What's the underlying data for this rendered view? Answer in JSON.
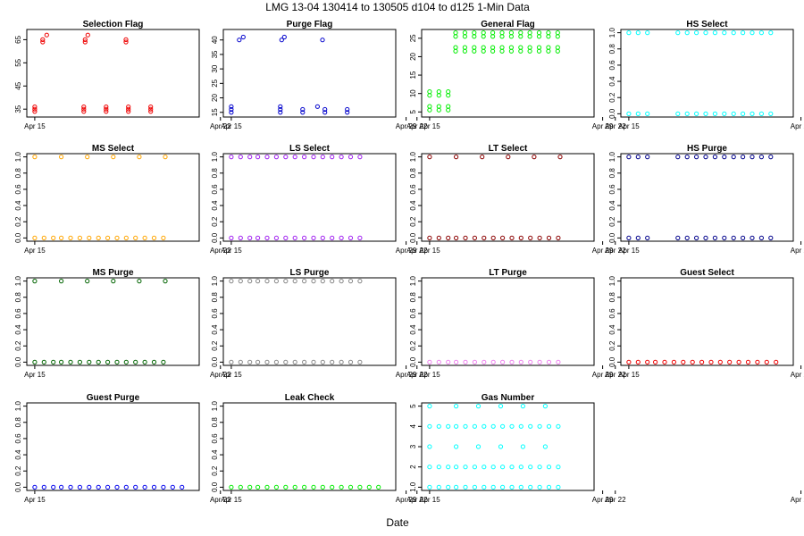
{
  "figure": {
    "title": "LMG   13-04    130414 to 130505    d104 to d125   1-Min Data",
    "xlabel": "Date",
    "x_ticks": [
      "Apr 15",
      "Apr 22",
      "Apr 29"
    ]
  },
  "chart_data": [
    {
      "type": "scatter",
      "title": "Selection Flag",
      "color": "#ee0000",
      "ylim": [
        33,
        68
      ],
      "yticks": [
        35,
        45,
        55,
        65
      ],
      "levels": [
        {
          "v": 34,
          "segs": [
            [
              0.0,
              0.72
            ],
            [
              1.85,
              4.6
            ]
          ],
          "step": 0.12
        },
        {
          "v": 35,
          "segs": [
            [
              0.0,
              0.72
            ],
            [
              1.85,
              4.6
            ]
          ],
          "step": 0.12
        },
        {
          "v": 36,
          "segs": [
            [
              0.0,
              0.72
            ],
            [
              1.85,
              4.6
            ]
          ],
          "step": 0.12
        },
        {
          "v": 64,
          "segs": [
            [
              0.3,
              0.7
            ],
            [
              1.9,
              4.6
            ]
          ],
          "step": 0.22
        },
        {
          "v": 65,
          "segs": [
            [
              0.3,
              0.7
            ],
            [
              1.9,
              4.6
            ]
          ],
          "step": 0.22
        },
        {
          "v": 67,
          "segs": [
            [
              0.45,
              0.55
            ],
            [
              2.0,
              4.6
            ]
          ],
          "step": 0.5
        }
      ]
    },
    {
      "type": "scatter",
      "title": "Purge Flag",
      "color": "#0000cc",
      "ylim": [
        14.5,
        42.5
      ],
      "yticks": [
        15,
        20,
        25,
        30,
        35,
        40
      ],
      "levels": [
        {
          "v": 15,
          "segs": [
            [
              0.0,
              0.72
            ],
            [
              1.85,
              4.6
            ]
          ],
          "step": 0.12
        },
        {
          "v": 16,
          "segs": [
            [
              0.0,
              0.72
            ],
            [
              1.85,
              4.6
            ]
          ],
          "step": 0.12
        },
        {
          "v": 17,
          "segs": [
            [
              0.0,
              0.72
            ],
            [
              1.85,
              4.6
            ]
          ],
          "step": 0.2
        },
        {
          "v": 40,
          "segs": [
            [
              0.3,
              0.7
            ],
            [
              1.9,
              4.6
            ]
          ],
          "step": 0.22
        },
        {
          "v": 41,
          "segs": [
            [
              0.45,
              0.55
            ],
            [
              2.0,
              4.6
            ]
          ],
          "step": 0.5
        }
      ]
    },
    {
      "type": "scatter",
      "title": "General Flag",
      "color": "#00ee00",
      "ylim": [
        4.5,
        26.5
      ],
      "yticks": [
        5,
        10,
        15,
        20,
        25
      ],
      "levels": [
        {
          "v": 5.5,
          "segs": [
            [
              0.0,
              0.72
            ]
          ],
          "step": 0.05
        },
        {
          "v": 6.5,
          "segs": [
            [
              0.0,
              0.72
            ]
          ],
          "step": 0.05
        },
        {
          "v": 9.5,
          "segs": [
            [
              0.0,
              0.72
            ]
          ],
          "step": 0.05
        },
        {
          "v": 10.5,
          "segs": [
            [
              0.0,
              0.72
            ]
          ],
          "step": 0.05
        },
        {
          "v": 21.5,
          "segs": [
            [
              0.98,
              5.0
            ]
          ],
          "step": 0.05
        },
        {
          "v": 22.5,
          "segs": [
            [
              0.98,
              5.0
            ]
          ],
          "step": 0.05
        },
        {
          "v": 25.5,
          "segs": [
            [
              0.98,
              5.0
            ]
          ],
          "step": 0.05
        },
        {
          "v": 26.5,
          "segs": [
            [
              0.98,
              5.0
            ]
          ],
          "step": 0.05
        }
      ]
    },
    {
      "type": "scatter",
      "title": "HS Select",
      "color": "#00ffff",
      "ylim": [
        0,
        1
      ],
      "yticks": [
        0,
        0.2,
        0.4,
        0.6,
        0.8,
        1
      ],
      "levels": [
        {
          "v": 0,
          "segs": [
            [
              0.0,
              0.72
            ],
            [
              1.85,
              5.6
            ]
          ],
          "step": 0.05
        },
        {
          "v": 1,
          "segs": [
            [
              0.0,
              0.72
            ],
            [
              1.85,
              5.6
            ]
          ],
          "step": 0.05
        }
      ]
    },
    {
      "type": "scatter",
      "title": "MS Select",
      "color": "#ffa500",
      "ylim": [
        0,
        1
      ],
      "yticks": [
        0,
        0.2,
        0.4,
        0.6,
        0.8,
        1
      ],
      "levels": [
        {
          "v": 0,
          "segs": [
            [
              0.0,
              0.72
            ],
            [
              1.0,
              5.0
            ]
          ],
          "step": 0.05
        },
        {
          "v": 1,
          "segs": [
            [
              0.0,
              0.72
            ],
            [
              1.0,
              5.0
            ]
          ],
          "step": 0.14
        }
      ]
    },
    {
      "type": "scatter",
      "title": "LS Select",
      "color": "#a020f0",
      "ylim": [
        0,
        1
      ],
      "yticks": [
        0,
        0.2,
        0.4,
        0.6,
        0.8,
        1
      ],
      "levels": [
        {
          "v": 0,
          "segs": [
            [
              0.0,
              0.72
            ],
            [
              1.0,
              5.0
            ]
          ],
          "step": 0.05
        },
        {
          "v": 1,
          "segs": [
            [
              0.0,
              0.72
            ],
            [
              1.0,
              5.0
            ]
          ],
          "step": 0.05
        }
      ]
    },
    {
      "type": "scatter",
      "title": "LT Select",
      "color": "#8b0000",
      "ylim": [
        0,
        1
      ],
      "yticks": [
        0,
        0.2,
        0.4,
        0.6,
        0.8,
        1
      ],
      "levels": [
        {
          "v": 0,
          "segs": [
            [
              0.0,
              0.72
            ],
            [
              1.0,
              5.0
            ]
          ],
          "step": 0.05
        },
        {
          "v": 1,
          "segs": [
            [
              0.0,
              0.72
            ],
            [
              1.0,
              5.0
            ]
          ],
          "step": 0.14
        }
      ]
    },
    {
      "type": "scatter",
      "title": "HS Purge",
      "color": "#00008b",
      "ylim": [
        0,
        1
      ],
      "yticks": [
        0,
        0.2,
        0.4,
        0.6,
        0.8,
        1
      ],
      "levels": [
        {
          "v": 0,
          "segs": [
            [
              0.0,
              0.72
            ],
            [
              1.85,
              5.6
            ]
          ],
          "step": 0.05
        },
        {
          "v": 1,
          "segs": [
            [
              0.0,
              0.72
            ],
            [
              1.85,
              5.6
            ]
          ],
          "step": 0.05
        }
      ]
    },
    {
      "type": "scatter",
      "title": "MS Purge",
      "color": "#006400",
      "ylim": [
        0,
        1
      ],
      "yticks": [
        0,
        0.2,
        0.4,
        0.6,
        0.8,
        1
      ],
      "levels": [
        {
          "v": 0,
          "segs": [
            [
              0.0,
              0.72
            ],
            [
              1.0,
              5.0
            ]
          ],
          "step": 0.05
        },
        {
          "v": 1,
          "segs": [
            [
              0.0,
              0.72
            ],
            [
              1.0,
              5.0
            ]
          ],
          "step": 0.14
        }
      ]
    },
    {
      "type": "scatter",
      "title": "LS Purge",
      "color": "#888888",
      "ylim": [
        0,
        1
      ],
      "yticks": [
        0,
        0.2,
        0.4,
        0.6,
        0.8,
        1
      ],
      "levels": [
        {
          "v": 0,
          "segs": [
            [
              0.0,
              0.72
            ],
            [
              1.0,
              5.0
            ]
          ],
          "step": 0.05
        },
        {
          "v": 1,
          "segs": [
            [
              0.0,
              0.72
            ],
            [
              1.0,
              5.0
            ]
          ],
          "step": 0.05
        }
      ]
    },
    {
      "type": "scatter",
      "title": "LT Purge",
      "color": "#ee82ee",
      "ylim": [
        0,
        1
      ],
      "yticks": [
        0,
        0.2,
        0.4,
        0.6,
        0.8,
        1
      ],
      "levels": [
        {
          "v": 0,
          "segs": [
            [
              0.0,
              0.72
            ],
            [
              1.0,
              5.0
            ]
          ],
          "step": 0.05
        }
      ]
    },
    {
      "type": "scatter",
      "title": "Guest Select",
      "color": "#ee0000",
      "ylim": [
        0,
        1
      ],
      "yticks": [
        0,
        0.2,
        0.4,
        0.6,
        0.8,
        1
      ],
      "levels": [
        {
          "v": 0,
          "segs": [
            [
              0.0,
              0.72
            ],
            [
              1.0,
              5.6
            ]
          ],
          "step": 0.05
        }
      ]
    },
    {
      "type": "scatter",
      "title": "Guest Purge",
      "color": "#0000ee",
      "ylim": [
        0,
        1
      ],
      "yticks": [
        0,
        0.2,
        0.4,
        0.6,
        0.8,
        1
      ],
      "levels": [
        {
          "v": 0,
          "segs": [
            [
              0.0,
              0.72
            ],
            [
              1.0,
              5.6
            ]
          ],
          "step": 0.05
        }
      ]
    },
    {
      "type": "scatter",
      "title": "Leak Check",
      "color": "#00ee00",
      "ylim": [
        0,
        1
      ],
      "yticks": [
        0,
        0.2,
        0.4,
        0.6,
        0.8,
        1
      ],
      "levels": [
        {
          "v": 0,
          "segs": [
            [
              0.0,
              0.72
            ],
            [
              1.0,
              5.6
            ]
          ],
          "step": 0.05
        }
      ]
    },
    {
      "type": "scatter",
      "title": "Gas Number",
      "color": "#00ffff",
      "ylim": [
        1,
        5
      ],
      "yticks": [
        1,
        2,
        3,
        4,
        5
      ],
      "levels": [
        {
          "v": 1,
          "segs": [
            [
              0.0,
              0.72
            ],
            [
              1.0,
              5.0
            ]
          ],
          "step": 0.05
        },
        {
          "v": 2,
          "segs": [
            [
              0.0,
              0.72
            ],
            [
              1.0,
              5.0
            ]
          ],
          "step": 0.05
        },
        {
          "v": 3,
          "segs": [
            [
              0.0,
              0.72
            ],
            [
              1.0,
              5.0
            ]
          ],
          "step": 0.12
        },
        {
          "v": 4,
          "segs": [
            [
              0.0,
              0.72
            ],
            [
              1.0,
              5.0
            ]
          ],
          "step": 0.05
        },
        {
          "v": 5,
          "segs": [
            [
              0.0,
              0.72
            ],
            [
              1.0,
              5.0
            ]
          ],
          "step": 0.12
        }
      ]
    }
  ]
}
